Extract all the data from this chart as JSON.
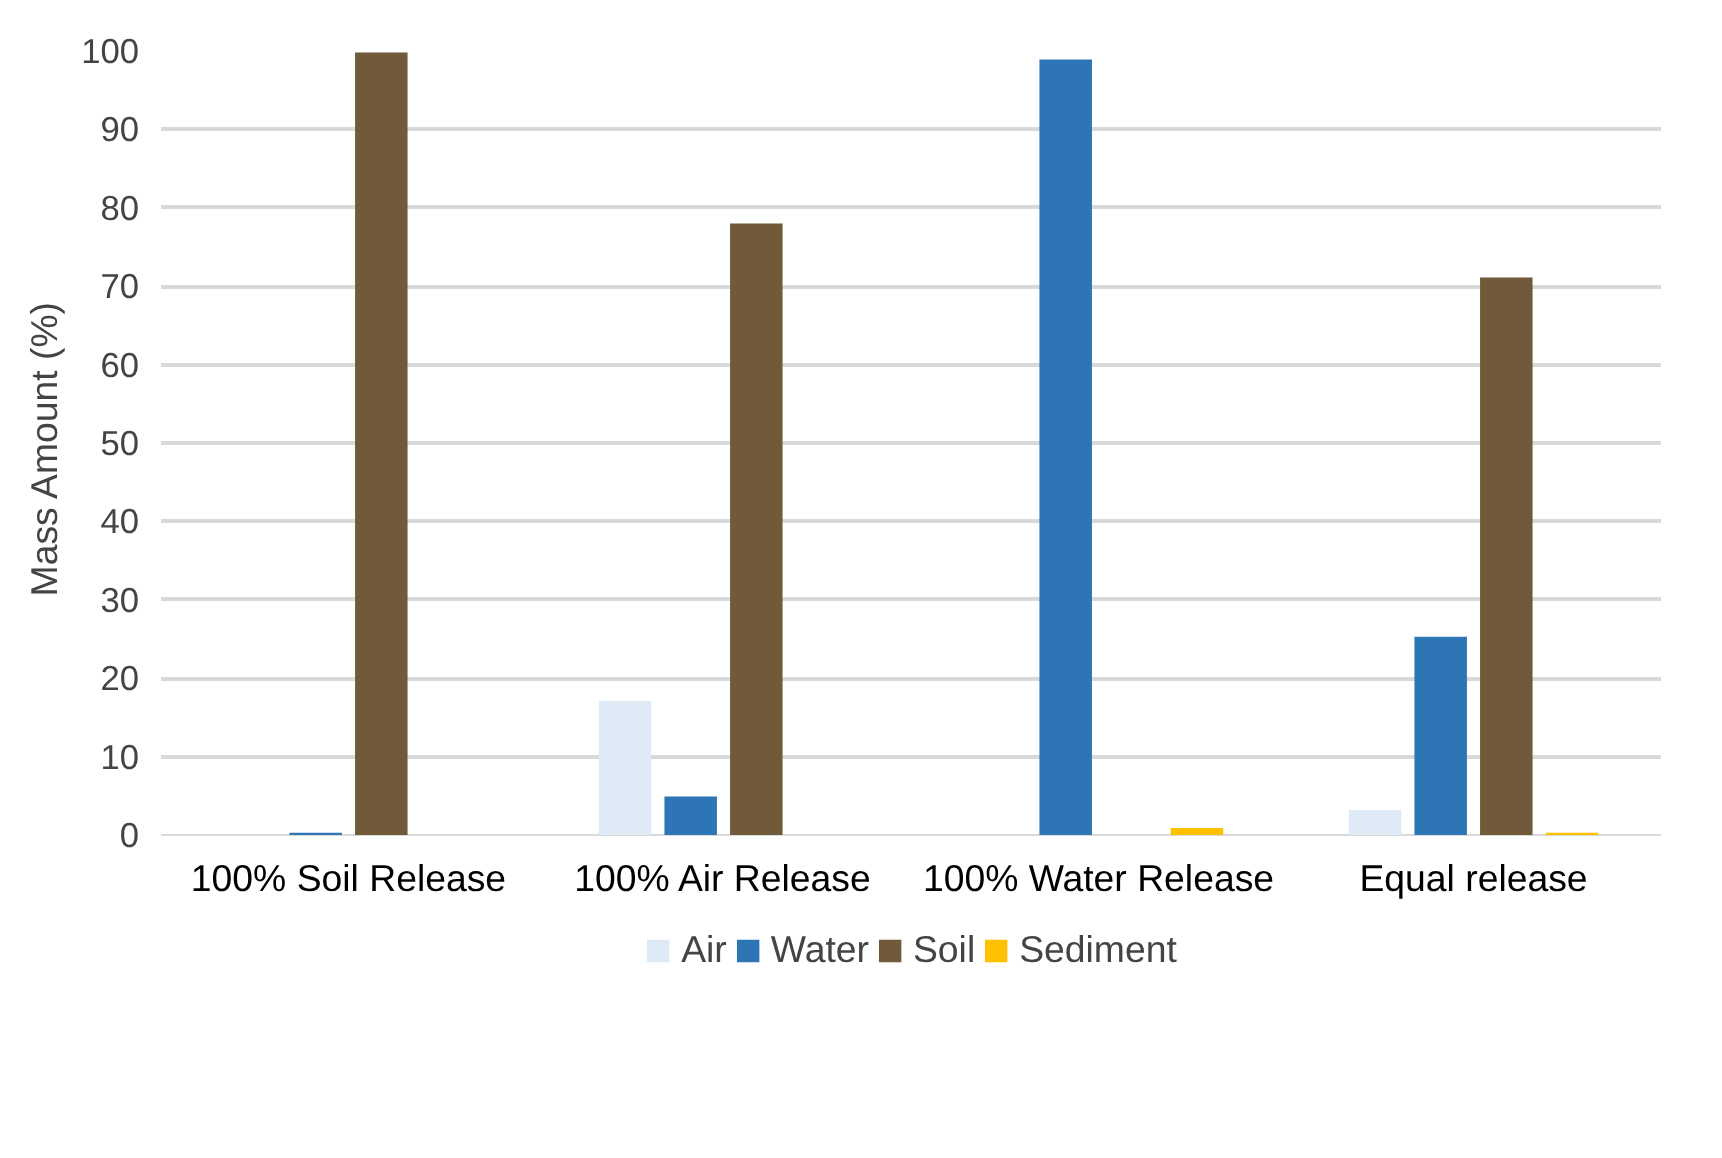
{
  "chart_data": {
    "type": "bar",
    "ylabel": "Mass Amount  (%)",
    "categories": [
      "100% Soil Release",
      "100% Air Release",
      "100% Water Release",
      "Equal release"
    ],
    "series": [
      {
        "name": "Air",
        "color": "#deebf7",
        "values": [
          0,
          17.1,
          0,
          3.2
        ]
      },
      {
        "name": "Water",
        "color": "#2e75b6",
        "values": [
          0.3,
          4.9,
          98.9,
          25.3
        ]
      },
      {
        "name": "Soil",
        "color": "#715a39",
        "values": [
          99.8,
          78,
          0,
          71.1
        ]
      },
      {
        "name": "Sediment",
        "color": "#ffc000",
        "values": [
          0,
          0,
          0.9,
          0.3
        ]
      }
    ],
    "ylim": [
      0,
      100
    ],
    "yticks": [
      0,
      10,
      20,
      30,
      40,
      50,
      60,
      70,
      80,
      90,
      100
    ],
    "grid": "y",
    "legend": "bottom"
  }
}
